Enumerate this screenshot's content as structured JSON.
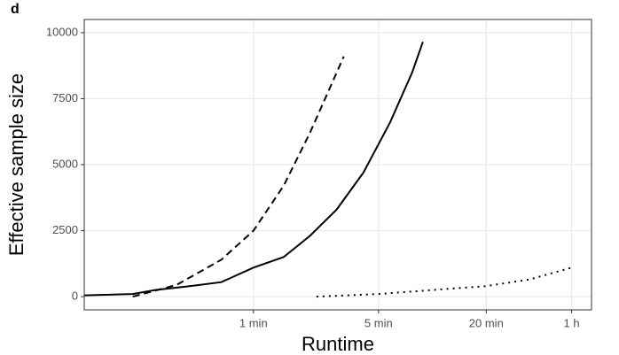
{
  "chart_data": {
    "type": "line",
    "title": "d",
    "x_label": "Runtime",
    "y_label": "Effective sample size",
    "xscale": "log",
    "grid": true,
    "xlim": [
      6.8,
      4650
    ],
    "ylim": [
      -500,
      10500
    ],
    "xticks": [
      {
        "value": 60,
        "label": "1 min"
      },
      {
        "value": 300,
        "label": "5 min"
      },
      {
        "value": 1200,
        "label": "20 min"
      },
      {
        "value": 3600,
        "label": "1 h"
      }
    ],
    "yticks": [
      0,
      2500,
      5000,
      7500,
      10000
    ],
    "series": [
      {
        "color": "#000000",
        "linetype": "solid",
        "x": [
          6.8,
          12.7,
          16.9,
          26.7,
          39.7,
          60,
          88.5,
          124,
          175,
          247,
          348,
          463,
          531
        ],
        "values": [
          50,
          100,
          250,
          400,
          550,
          1100,
          1500,
          2300,
          3300,
          4700,
          6600,
          8500,
          9650
        ]
      },
      {
        "color": "#000000",
        "linetype": "dashed",
        "x": [
          12.7,
          22.4,
          39.7,
          60,
          88.5,
          124,
          192
        ],
        "values": [
          0,
          450,
          1400,
          2500,
          4200,
          6200,
          9100
        ]
      },
      {
        "color": "#000000",
        "linetype": "dotted",
        "x": [
          135,
          300,
          596,
          1200,
          2094,
          3600
        ],
        "values": [
          0,
          100,
          250,
          400,
          650,
          1100
        ]
      }
    ]
  }
}
